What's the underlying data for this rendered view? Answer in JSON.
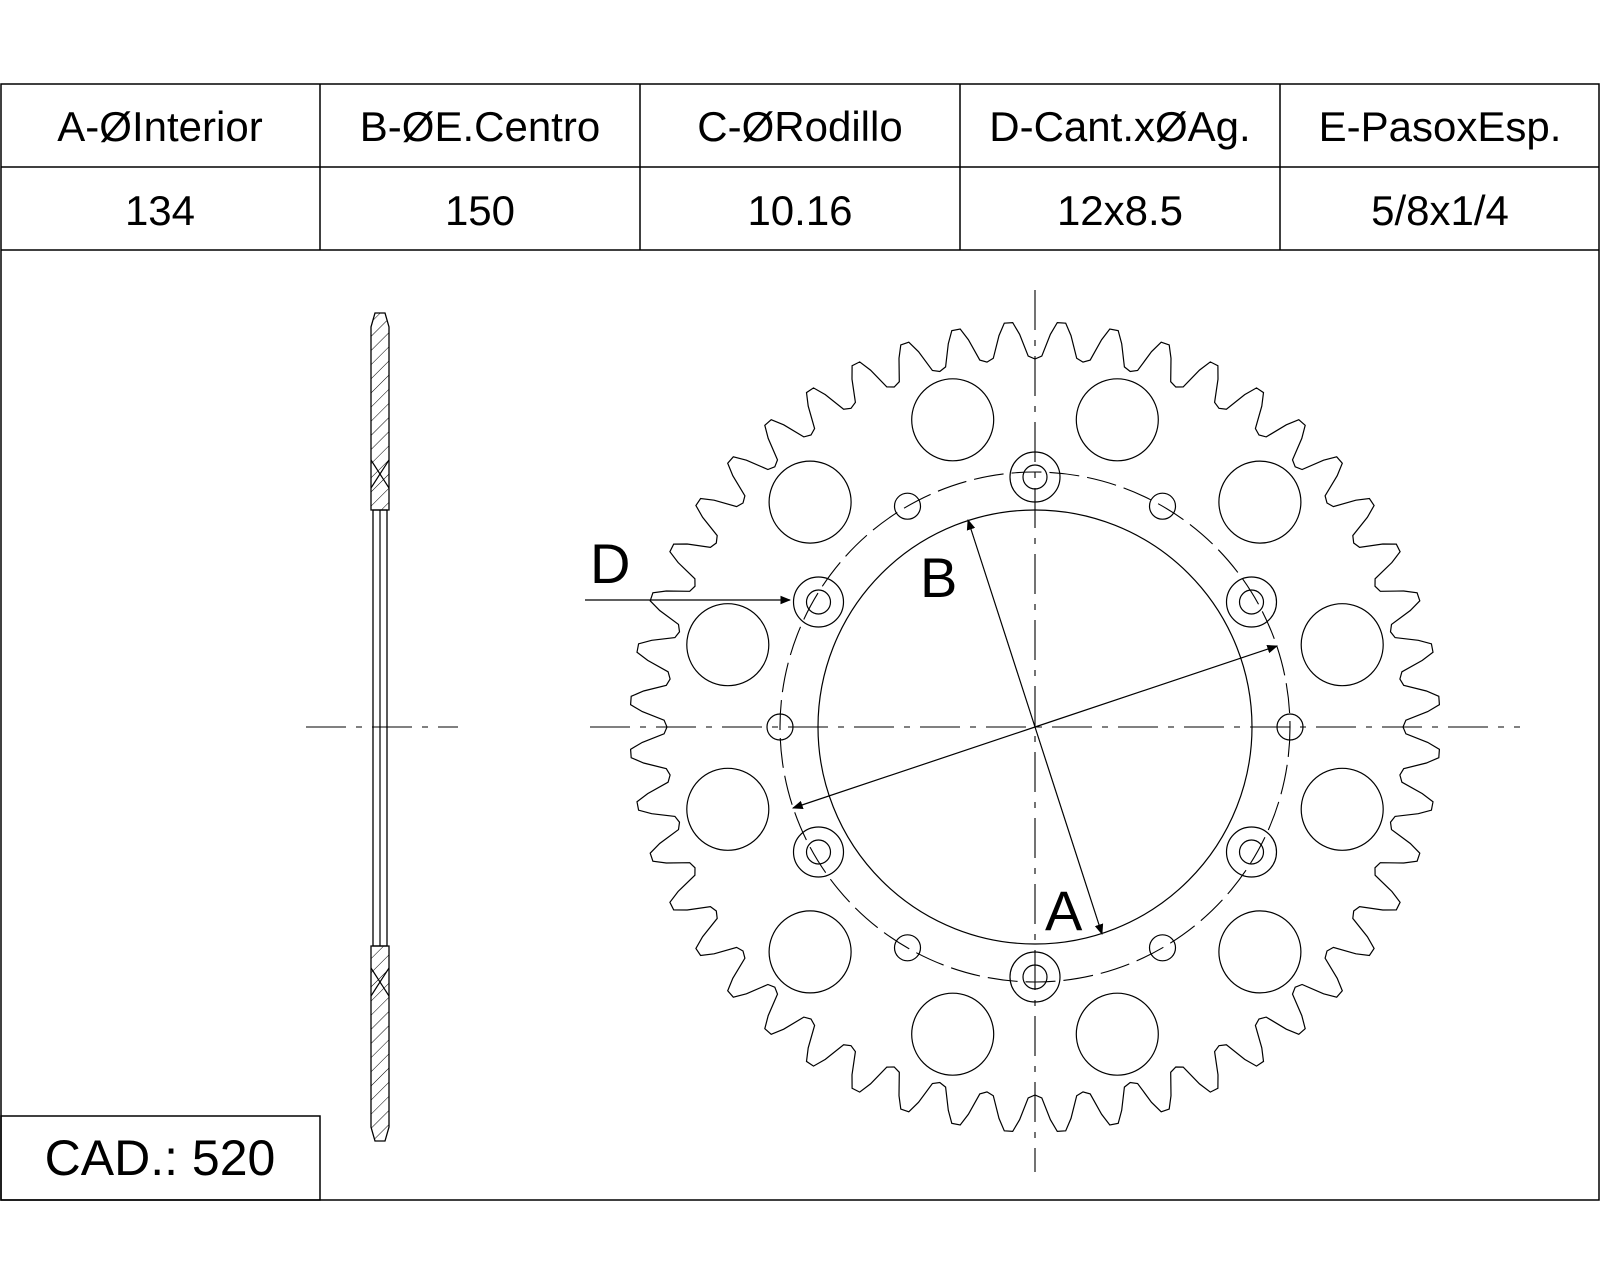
{
  "spec_table": {
    "headers": [
      "A-ØInterior",
      "B-ØE.Centro",
      "C-ØRodillo",
      "D-Cant.xØAg.",
      "E-PasoxEsp."
    ],
    "values": [
      "134",
      "150",
      "10.16",
      "12x8.5",
      "5/8x1/4"
    ]
  },
  "chain": {
    "label": "CAD.: 520"
  },
  "drawing": {
    "dimension_labels": {
      "a": "A",
      "b": "B",
      "d": "D"
    },
    "teeth": 48,
    "lightening_holes": 12,
    "mounting_holes": 6,
    "small_holes": 6
  }
}
